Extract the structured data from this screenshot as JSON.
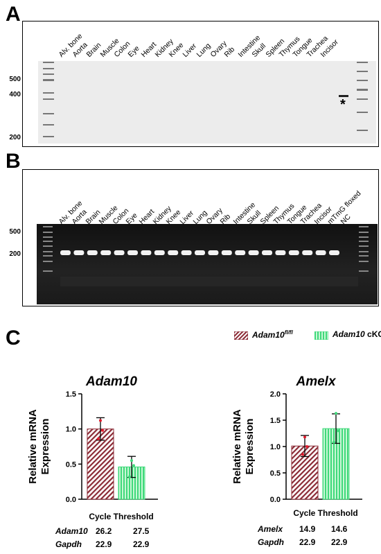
{
  "panels": {
    "a": "A",
    "b": "B",
    "c": "C"
  },
  "gel_a": {
    "lanes": [
      "Alv. bone",
      "Aorta",
      "Brain",
      "Muscle",
      "Colon",
      "Eye",
      "Heart",
      "Kidney",
      "Knee",
      "Liver",
      "Lung",
      "Ovary",
      "Rib",
      "Intestine",
      "Skull",
      "Spleen",
      "Thymus",
      "Tongue",
      "Trachea",
      "Incisor"
    ],
    "ladder": [
      "500",
      "400",
      "200"
    ],
    "marker": "*"
  },
  "gel_b": {
    "lanes": [
      "Alv. bone",
      "Aorta",
      "Brain",
      "Muscle",
      "Colon",
      "Eye",
      "Heart",
      "Kidney",
      "Knee",
      "Liver",
      "Lung",
      "Ovary",
      "Rib",
      "Intestine",
      "Skull",
      "Spleen",
      "Thymus",
      "Tongue",
      "Trachea",
      "Incisor",
      "mTmG floxed",
      "NC"
    ],
    "ladder": [
      "500",
      "200"
    ]
  },
  "legend": {
    "flox_gene": "Adam10",
    "flox_sup": "fl/fl",
    "cko_gene": "Adam10",
    "cko_suffix": "cKO",
    "flox_color": "#8b2a35",
    "cko_color": "#3fd97a"
  },
  "chart_data": [
    {
      "type": "bar",
      "title": "Adam10",
      "ylabel": "Relative mRNA Expression",
      "categories": [
        "Adam10 fl/fl",
        "Adam10 cKO"
      ],
      "values": [
        1.0,
        0.46
      ],
      "errors": [
        0.16,
        0.15
      ],
      "points": [
        [
          0.86,
          1.12,
          0.98
        ],
        [
          0.32,
          0.55,
          0.48
        ]
      ],
      "ylim": [
        0,
        1.5
      ],
      "yticks": [
        "0.0",
        "0.5",
        "1.0",
        "1.5"
      ],
      "yticks_values": [
        0,
        0.5,
        1.0,
        1.5
      ]
    },
    {
      "type": "bar",
      "title": "Amelx",
      "ylabel": "Relative mRNA Expression",
      "categories": [
        "Adam10 fl/fl",
        "Adam10 cKO"
      ],
      "values": [
        1.01,
        1.34
      ],
      "errors": [
        0.2,
        0.28
      ],
      "points": [
        [
          0.85,
          1.18,
          1.0
        ],
        [
          1.08,
          1.63,
          1.3
        ]
      ],
      "ylim": [
        0,
        2.0
      ],
      "yticks": [
        "0.0",
        "0.5",
        "1.0",
        "1.5",
        "2.0"
      ],
      "yticks_values": [
        0,
        0.5,
        1.0,
        1.5,
        2.0
      ]
    }
  ],
  "cycle_threshold": {
    "title": "Cycle Threshold",
    "left": {
      "rows": [
        {
          "gene": "Adam10",
          "a": "26.2",
          "b": "27.5"
        },
        {
          "gene": "Gapdh",
          "a": "22.9",
          "b": "22.9"
        }
      ]
    },
    "right": {
      "rows": [
        {
          "gene": "Amelx",
          "a": "14.9",
          "b": "14.6"
        },
        {
          "gene": "Gapdh",
          "a": "22.9",
          "b": "22.9"
        }
      ]
    }
  }
}
